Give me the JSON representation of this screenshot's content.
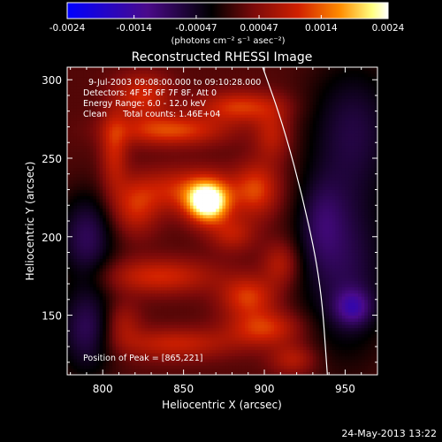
{
  "chart_data": {
    "type": "heatmap",
    "title": "Reconstructed RHESSI Image",
    "xlabel": "Heliocentric X (arcsec)",
    "ylabel": "Heliocentric Y (arcsec)",
    "xlim": [
      778,
      970
    ],
    "ylim": [
      112,
      308
    ],
    "x_ticks": [
      "800",
      "850",
      "900",
      "950"
    ],
    "y_ticks": [
      "150",
      "200",
      "250",
      "300"
    ],
    "x_tick_values": [
      800,
      850,
      900,
      950
    ],
    "y_tick_values": [
      150,
      200,
      250,
      300
    ],
    "colorbar": {
      "range": [
        -0.0024,
        0.0024
      ],
      "tick_labels": [
        "-0.0024",
        "-0.0014",
        "-0.00047",
        "0.00047",
        "0.0014",
        "0.0024"
      ],
      "units_label": "(photons cm⁻² s⁻¹ asec⁻²)",
      "colors": [
        "#0000ff",
        "#5a0a9a",
        "#000000",
        "#7a0a0a",
        "#d02000",
        "#ff8c00",
        "#ffff80",
        "#ffffff"
      ]
    },
    "annotations": {
      "line1": "9-Jul-2003 09:08:00.000 to 09:10:28.000",
      "line2": "Detectors: 4F 5F 6F 7F 8F, Att 0",
      "line3": "Energy Range: 6.0 - 12.0 keV",
      "line4": "Clean      Total counts: 1.46E+04",
      "peak": "Position of Peak = [865,221]"
    },
    "peak": [
      865,
      221
    ],
    "limb_curve": [
      [
        899,
        308
      ],
      [
        912,
        270
      ],
      [
        925,
        220
      ],
      [
        935,
        170
      ],
      [
        939,
        112
      ]
    ],
    "sources": [
      {
        "x": 865,
        "y": 222,
        "amp": 0.0024,
        "sx": 9,
        "sy": 9
      },
      {
        "x": 850,
        "y": 230,
        "amp": 0.0009,
        "sx": 22,
        "sy": 10
      },
      {
        "x": 895,
        "y": 230,
        "amp": 0.001,
        "sx": 10,
        "sy": 12
      },
      {
        "x": 842,
        "y": 268,
        "amp": 0.0011,
        "sx": 24,
        "sy": 7
      },
      {
        "x": 885,
        "y": 283,
        "amp": 0.001,
        "sx": 18,
        "sy": 7
      },
      {
        "x": 825,
        "y": 290,
        "amp": 0.0009,
        "sx": 12,
        "sy": 10
      },
      {
        "x": 807,
        "y": 255,
        "amp": 0.0008,
        "sx": 6,
        "sy": 18
      },
      {
        "x": 820,
        "y": 218,
        "amp": 0.0008,
        "sx": 10,
        "sy": 12
      },
      {
        "x": 880,
        "y": 202,
        "amp": 0.0007,
        "sx": 10,
        "sy": 8
      },
      {
        "x": 835,
        "y": 175,
        "amp": 0.0009,
        "sx": 25,
        "sy": 8
      },
      {
        "x": 890,
        "y": 162,
        "amp": 0.001,
        "sx": 12,
        "sy": 9
      },
      {
        "x": 900,
        "y": 142,
        "amp": 0.001,
        "sx": 16,
        "sy": 8
      },
      {
        "x": 845,
        "y": 132,
        "amp": 0.0008,
        "sx": 25,
        "sy": 7
      },
      {
        "x": 910,
        "y": 183,
        "amp": 0.0007,
        "sx": 8,
        "sy": 10
      },
      {
        "x": 812,
        "y": 145,
        "amp": 0.0006,
        "sx": 8,
        "sy": 10
      },
      {
        "x": 905,
        "y": 265,
        "amp": 0.0007,
        "sx": 8,
        "sy": 12
      },
      {
        "x": 918,
        "y": 122,
        "amp": 0.0007,
        "sx": 10,
        "sy": 7
      },
      {
        "x": 790,
        "y": 200,
        "amp": -0.001,
        "sx": 12,
        "sy": 20
      },
      {
        "x": 790,
        "y": 140,
        "amp": -0.001,
        "sx": 12,
        "sy": 20
      },
      {
        "x": 950,
        "y": 180,
        "amp": -0.0009,
        "sx": 20,
        "sy": 40
      },
      {
        "x": 955,
        "y": 155,
        "amp": -0.001,
        "sx": 8,
        "sy": 8
      },
      {
        "x": 955,
        "y": 270,
        "amp": -0.0008,
        "sx": 20,
        "sy": 30
      },
      {
        "x": 935,
        "y": 210,
        "amp": -0.0006,
        "sx": 10,
        "sy": 20
      }
    ]
  },
  "footer_date": "24-May-2013 13:22"
}
